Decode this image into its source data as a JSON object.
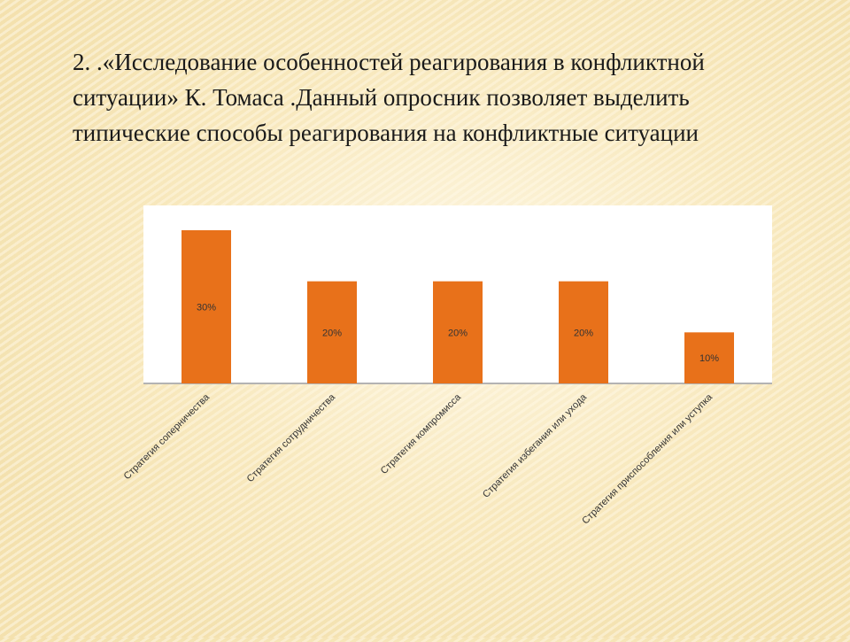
{
  "slide": {
    "title": "2. .«Исследование особенностей реагирования в конфликтной ситуации» К. Томаса .Данный опросник позволяет выделить типические способы реагирования на конфликтные ситуации"
  },
  "colors": {
    "bar": "#e8711a",
    "plot_bg": "#ffffff",
    "axis": "#9a9a9a",
    "text": "#333333"
  },
  "chart_data": {
    "type": "bar",
    "title": "",
    "xlabel": "",
    "ylabel": "",
    "categories": [
      "Стратегия соперничества",
      "Стратегия сотрудничества",
      "Стратегия компромисса",
      "Стратегия избегания или ухода",
      "Стратегия приспособления или уступка"
    ],
    "values": [
      30,
      20,
      20,
      20,
      10
    ],
    "data_labels": [
      "30%",
      "20%",
      "20%",
      "20%",
      "10%"
    ],
    "ylim": [
      0,
      35
    ],
    "grid": false,
    "legend": "none"
  }
}
